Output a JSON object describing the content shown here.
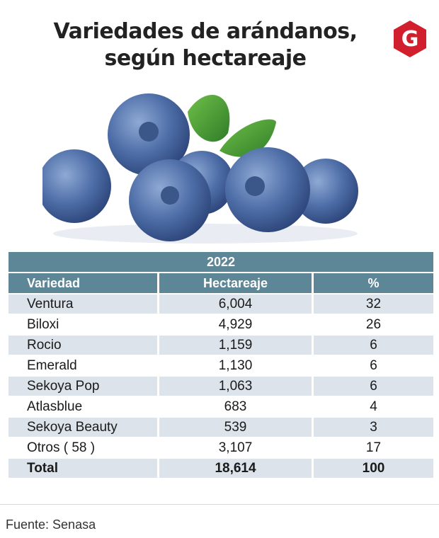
{
  "header": {
    "title_line1": "Variedades de arándanos,",
    "title_line2": "según hectareaje",
    "logo_letter": "G",
    "logo_color": "#d11f2e"
  },
  "chart_data": {
    "type": "table",
    "year": "2022",
    "columns": [
      "Variedad",
      "Hectareaje",
      "%"
    ],
    "rows": [
      [
        "Ventura",
        "6,004",
        "32"
      ],
      [
        "Biloxi",
        "4,929",
        "26"
      ],
      [
        "Rocio",
        "1,159",
        "6"
      ],
      [
        "Emerald",
        "1,130",
        "6"
      ],
      [
        "Sekoya Pop",
        "1,063",
        "6"
      ],
      [
        "Atlasblue",
        "683",
        "4"
      ],
      [
        "Sekoya Beauty",
        "539",
        "3"
      ],
      [
        "Otros ( 58 )",
        "3,107",
        "17"
      ]
    ],
    "total": [
      "Total",
      "18,614",
      "100"
    ],
    "header_color": "#5d8696",
    "stripe_color": "#dde3ea"
  },
  "footer": {
    "source": "Fuente: Senasa"
  }
}
